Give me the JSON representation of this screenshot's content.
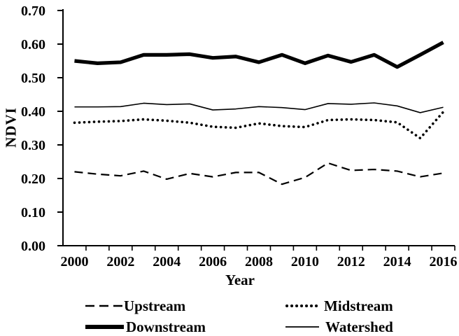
{
  "figure": {
    "title": "",
    "y_axis_title": "NDVI",
    "x_axis_title": "Year"
  },
  "chart_data": {
    "type": "line",
    "title": "",
    "xlabel": "Year",
    "ylabel": "NDVI",
    "x": [
      2000,
      2001,
      2002,
      2003,
      2004,
      2005,
      2006,
      2007,
      2008,
      2009,
      2010,
      2011,
      2012,
      2013,
      2014,
      2015,
      2016
    ],
    "x_label_every": 2,
    "y_ticks": [
      0.0,
      0.1,
      0.2,
      0.3,
      0.4,
      0.5,
      0.6,
      0.7
    ],
    "y_tick_labels": [
      "0.00",
      "0.10",
      "0.20",
      "0.30",
      "0.40",
      "0.50",
      "0.60",
      "0.70"
    ],
    "ylim": [
      0.0,
      0.7
    ],
    "grid": false,
    "line_color": "#000000",
    "background_color": "#ffffff",
    "legend_position": "bottom",
    "series": [
      {
        "name": "Upstream",
        "style": "dashed",
        "values": [
          0.22,
          0.213,
          0.208,
          0.222,
          0.198,
          0.215,
          0.205,
          0.218,
          0.218,
          0.183,
          0.203,
          0.246,
          0.224,
          0.227,
          0.222,
          0.205,
          0.216
        ]
      },
      {
        "name": "Midstream",
        "style": "dotted",
        "values": [
          0.366,
          0.369,
          0.371,
          0.376,
          0.372,
          0.366,
          0.354,
          0.351,
          0.364,
          0.356,
          0.353,
          0.374,
          0.376,
          0.374,
          0.367,
          0.32,
          0.398
        ]
      },
      {
        "name": "Downstream",
        "style": "solid-thick",
        "values": [
          0.55,
          0.543,
          0.546,
          0.568,
          0.568,
          0.57,
          0.559,
          0.563,
          0.546,
          0.568,
          0.543,
          0.566,
          0.547,
          0.568,
          0.532,
          0.568,
          0.605
        ]
      },
      {
        "name": "Watershed",
        "style": "solid-thin",
        "values": [
          0.413,
          0.413,
          0.414,
          0.424,
          0.42,
          0.422,
          0.404,
          0.407,
          0.414,
          0.411,
          0.405,
          0.423,
          0.421,
          0.425,
          0.416,
          0.396,
          0.412
        ]
      }
    ]
  }
}
